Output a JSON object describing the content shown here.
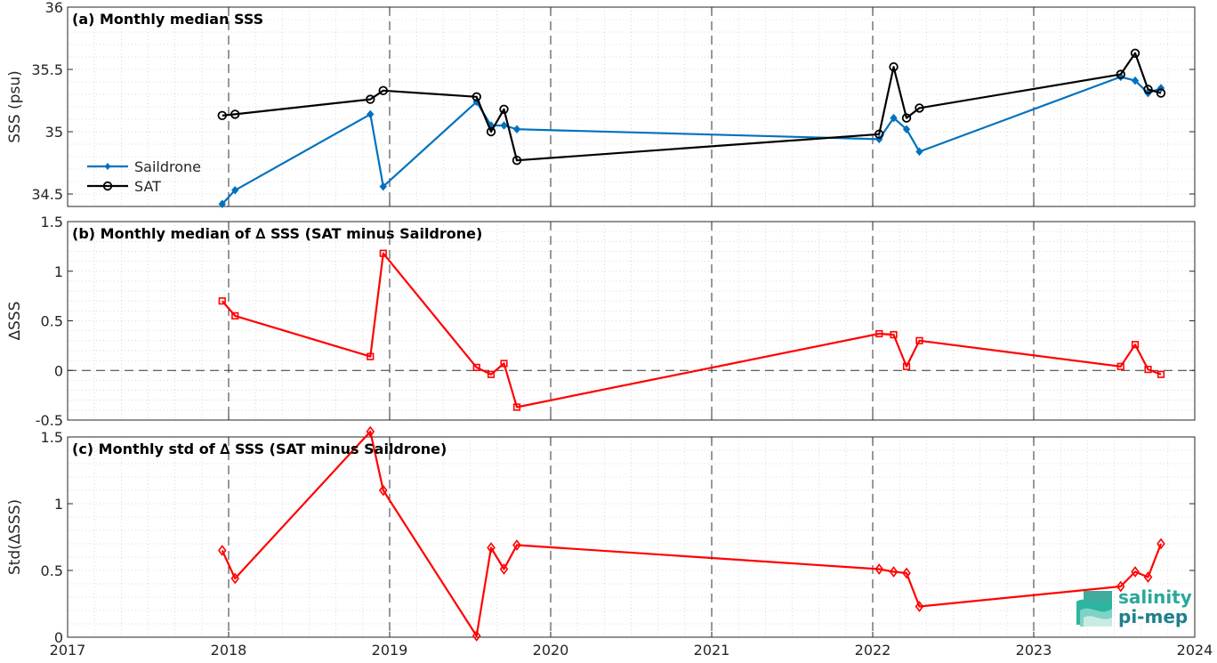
{
  "chart_data": [
    {
      "type": "line",
      "title": "(a) Monthly median SSS",
      "ylabel": "SSS (psu)",
      "xlim": [
        2017,
        2024
      ],
      "ylim": [
        34.4,
        36
      ],
      "yticks": [
        34.5,
        35,
        35.5,
        36
      ],
      "ytick_labels": [
        "34.5",
        "35",
        "35.5",
        "36"
      ],
      "xticks": [
        2017,
        2018,
        2019,
        2020,
        2021,
        2022,
        2023,
        2024
      ],
      "grid": true,
      "legend_position": "left",
      "series": [
        {
          "name": "Saildrone",
          "color": "#0072BD",
          "marker": "diamond-filled",
          "x": [
            2017.96,
            2018.04,
            2018.88,
            2018.96,
            2019.54,
            2019.63,
            2019.71,
            2019.79,
            2022.04,
            2022.13,
            2022.21,
            2022.29,
            2023.54,
            2023.63,
            2023.71,
            2023.79
          ],
          "y": [
            34.42,
            34.53,
            35.14,
            34.56,
            35.24,
            35.05,
            35.05,
            35.02,
            34.94,
            35.11,
            35.02,
            34.84,
            35.44,
            35.41,
            35.31,
            35.35
          ]
        },
        {
          "name": "SAT",
          "color": "#000000",
          "marker": "circle-open",
          "x": [
            2017.96,
            2018.04,
            2018.88,
            2018.96,
            2019.54,
            2019.63,
            2019.71,
            2019.79,
            2022.04,
            2022.13,
            2022.21,
            2022.29,
            2023.54,
            2023.63,
            2023.71,
            2023.79
          ],
          "y": [
            35.13,
            35.14,
            35.26,
            35.33,
            35.28,
            35.0,
            35.18,
            34.77,
            34.98,
            35.52,
            35.11,
            35.19,
            35.46,
            35.63,
            35.34,
            35.31
          ]
        }
      ]
    },
    {
      "type": "line",
      "title": "(b) Monthly median of ∆ SSS (SAT minus Saildrone)",
      "ylabel": "∆SSS",
      "xlim": [
        2017,
        2024
      ],
      "ylim": [
        -0.5,
        1.5
      ],
      "yticks": [
        -0.5,
        0,
        0.5,
        1,
        1.5
      ],
      "ytick_labels": [
        "-0.5",
        "0",
        "0.5",
        "1",
        "1.5"
      ],
      "xticks": [
        2017,
        2018,
        2019,
        2020,
        2021,
        2022,
        2023,
        2024
      ],
      "grid": true,
      "zero_line": true,
      "series": [
        {
          "color": "#FF0000",
          "marker": "square-open",
          "x": [
            2017.96,
            2018.04,
            2018.88,
            2018.96,
            2019.54,
            2019.63,
            2019.71,
            2019.79,
            2022.04,
            2022.13,
            2022.21,
            2022.29,
            2023.54,
            2023.63,
            2023.71,
            2023.79
          ],
          "y": [
            0.7,
            0.55,
            0.14,
            1.18,
            0.03,
            -0.04,
            0.07,
            -0.37,
            0.37,
            0.36,
            0.04,
            0.3,
            0.04,
            0.26,
            0.01,
            -0.04
          ]
        }
      ]
    },
    {
      "type": "line",
      "title": "(c) Monthly std of ∆ SSS (SAT minus Saildrone)",
      "ylabel": "Std(∆SSS)",
      "xlim": [
        2017,
        2024
      ],
      "ylim": [
        0,
        1.5
      ],
      "yticks": [
        0,
        0.5,
        1,
        1.5
      ],
      "ytick_labels": [
        "0",
        "0.5",
        "1",
        "1.5"
      ],
      "xticks": [
        2017,
        2018,
        2019,
        2020,
        2021,
        2022,
        2023,
        2024
      ],
      "xtick_labels": [
        "2017",
        "2018",
        "2019",
        "2020",
        "2021",
        "2022",
        "2023",
        "2024"
      ],
      "grid": true,
      "series": [
        {
          "color": "#FF0000",
          "marker": "diamond-open",
          "x": [
            2017.96,
            2018.04,
            2018.88,
            2018.96,
            2019.54,
            2019.63,
            2019.71,
            2019.79,
            2022.04,
            2022.13,
            2022.21,
            2022.29,
            2023.54,
            2023.63,
            2023.71,
            2023.79
          ],
          "y": [
            0.65,
            0.44,
            1.54,
            1.1,
            0.01,
            0.67,
            0.51,
            0.69,
            0.51,
            0.49,
            0.48,
            0.23,
            0.38,
            0.49,
            0.45,
            0.7
          ]
        }
      ]
    }
  ],
  "logo": {
    "line1": "salinity",
    "line2": "pi-mep"
  }
}
